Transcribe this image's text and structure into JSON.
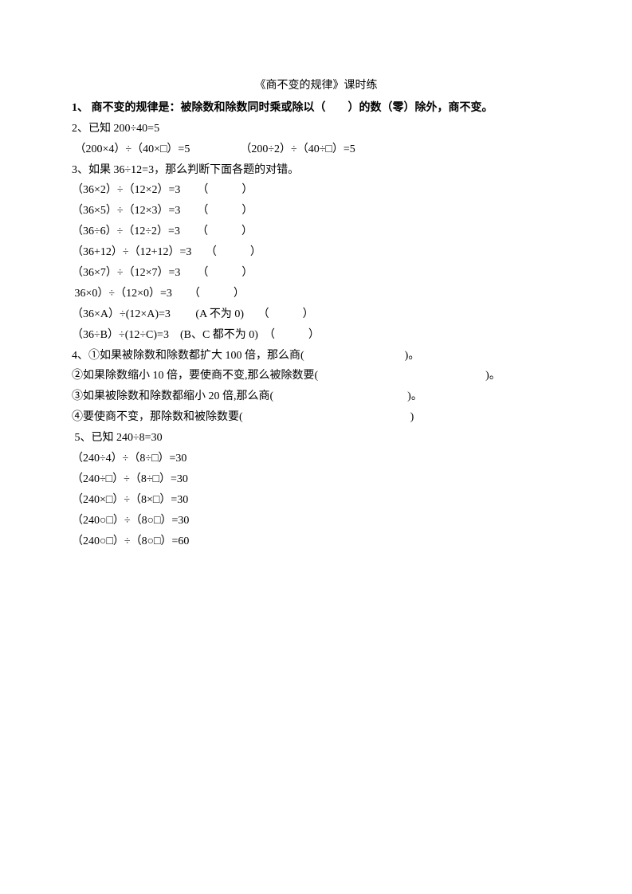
{
  "title": "《商不变的规律》课时练",
  "lines": [
    {
      "text": "1、 商不变的规律是：被除数和除数同时乘或除以（　　）的数（零）除外，商不变。",
      "bold": true
    },
    {
      "text": "2、已知 200÷40=5"
    },
    {
      "text": " （200×4）÷（40×□）=5　　　　　（200÷2）÷（40÷□）=5"
    },
    {
      "text": "3、如果 36÷12=3，那么判断下面各题的对错。"
    },
    {
      "text": "（36×2）÷（12×2）=3　　（　　　）"
    },
    {
      "text": "（36×5）÷（12×3）=3　　（　　　）"
    },
    {
      "text": "（36÷6）÷（12÷2）=3　　（　　　）"
    },
    {
      "text": "（36+12）÷（12+12）=3　 （　　　）"
    },
    {
      "text": "（36×7）÷（12×7）=3　　（　　　）"
    },
    {
      "text": " 36×0）÷（12×0）=3　　（　　　）"
    },
    {
      "text": "（36×A）÷(12×A)=3　　 (A 不为 0)　 （　　　）"
    },
    {
      "text": "（36÷B）÷(12÷C)=3　(B、C 都不为 0)　（　　　）"
    },
    {
      "text": "4、①如果被除数和除数都扩大 100 倍，那么商(　　　　　　　　　)。"
    },
    {
      "text": "②如果除数缩小 10 倍，要使商不变,那么被除数要(　　　　　　　　　　　　　　　)。"
    },
    {
      "text": "③如果被除数和除数都缩小 20 倍,那么商(　　　　　　　　　　　　)。"
    },
    {
      "text": "④要使商不变，那除数和被除数要(　　　　　　　　　　　　　　　)"
    },
    {
      "text": " 5、已知 240÷8=30"
    },
    {
      "text": "（240÷4）÷（8÷□）=30"
    },
    {
      "text": "（240÷□）÷（8÷□）=30"
    },
    {
      "text": "（240×□）÷（8×□）=30"
    },
    {
      "text": "（240○□）÷（8○□）=30"
    },
    {
      "text": "（240○□）÷（8○□）=60"
    }
  ]
}
